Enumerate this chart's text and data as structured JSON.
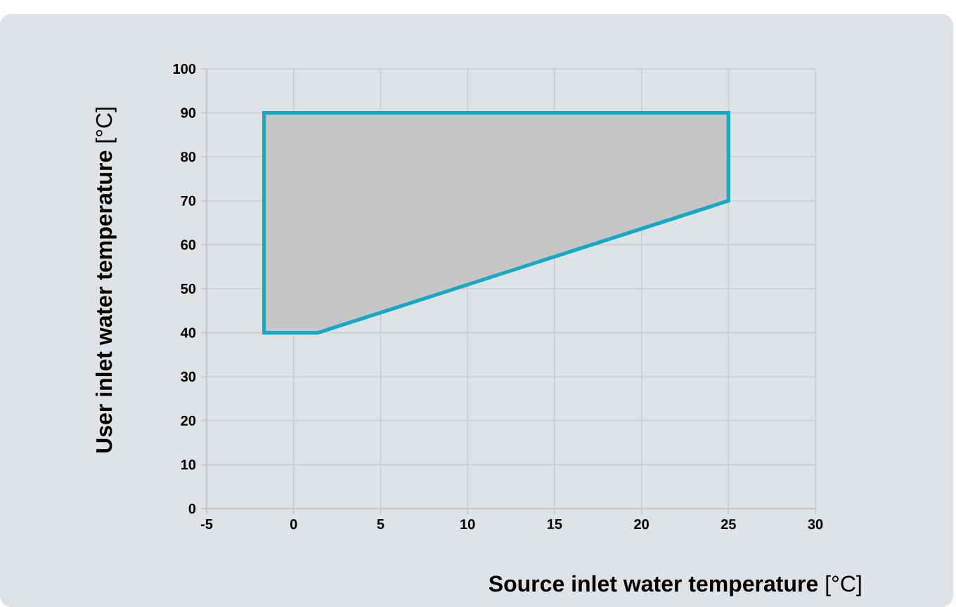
{
  "chart_data": {
    "type": "area",
    "xlabel": "**Source inlet water temperature** [°C]",
    "ylabel": "**User inlet water temperature** [°C]",
    "series": [
      {
        "color": "#17a9c4",
        "x": [
          -1.7,
          25,
          25,
          1.4,
          -1.7,
          -1.7
        ],
        "values": [
          90,
          90,
          70,
          40,
          40,
          90
        ]
      }
    ],
    "xlim": [
      -5,
      30
    ],
    "ylim": [
      0,
      100
    ],
    "xticks": [
      -5,
      0,
      5,
      10,
      15,
      20,
      25,
      30
    ],
    "yticks": [
      0,
      10,
      20,
      30,
      40,
      50,
      60,
      70,
      80,
      90,
      100
    ],
    "grid": true
  }
}
